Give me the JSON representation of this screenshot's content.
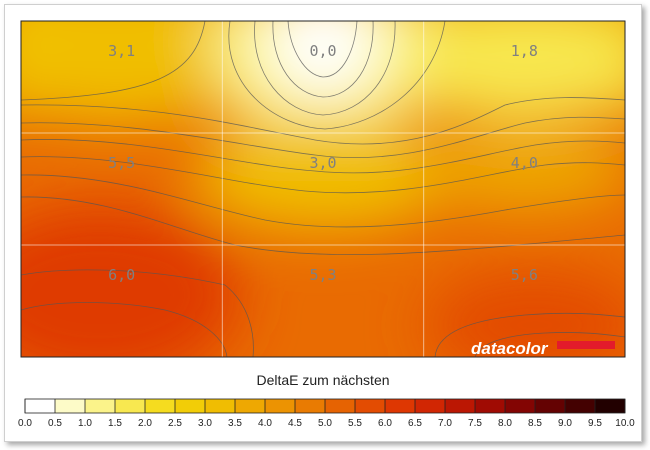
{
  "chart_data": {
    "type": "heatmap",
    "rows": 3,
    "cols": 3,
    "values": [
      [
        "3,1",
        "0,0",
        "1,8"
      ],
      [
        "5,5",
        "3,0",
        "4,0"
      ],
      [
        "6,0",
        "5,3",
        "5,6"
      ]
    ],
    "numeric_values": [
      [
        3.1,
        0.0,
        1.8
      ],
      [
        5.5,
        3.0,
        4.0
      ],
      [
        6.0,
        5.3,
        5.6
      ]
    ],
    "colorbar": {
      "title": "DeltaE zum nächsten",
      "ticks": [
        "0.0",
        "0.5",
        "1.0",
        "1.5",
        "2.0",
        "2.5",
        "3.0",
        "3.5",
        "4.0",
        "4.5",
        "5.0",
        "5.5",
        "6.0",
        "6.5",
        "7.0",
        "7.5",
        "8.0",
        "8.5",
        "9.0",
        "9.5",
        "10.0"
      ],
      "range": [
        0,
        10
      ],
      "colors": [
        "#ffffff",
        "#fdfbc8",
        "#fbf38a",
        "#f8e850",
        "#f5dc1f",
        "#f2cd07",
        "#f0bd02",
        "#eea802",
        "#ec9302",
        "#e97b02",
        "#e66302",
        "#e34c02",
        "#de3702",
        "#d12603",
        "#bb1703",
        "#a00b03",
        "#830503",
        "#640202",
        "#440101",
        "#220000"
      ]
    },
    "watermark": "datacolor",
    "brand_colors": {
      "bar": "#e31b2b"
    }
  }
}
